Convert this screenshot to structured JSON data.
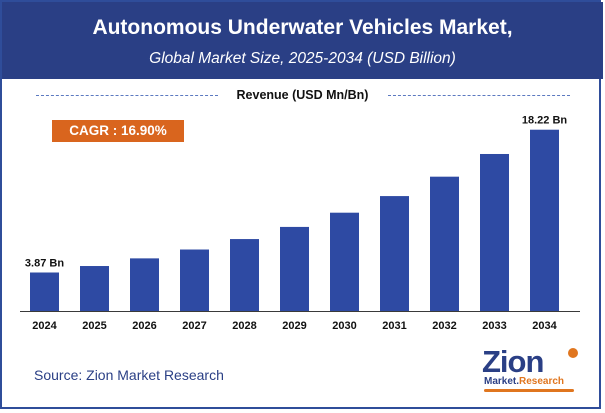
{
  "header": {
    "title": "Autonomous Underwater Vehicles Market,",
    "subtitle": "Global Market Size, 2025-2034 (USD Billion)"
  },
  "cagr_label": "CAGR : 16.90%",
  "source": "Source: Zion Market Research",
  "logo": {
    "main": "Zion",
    "sub_part1": "Market.",
    "sub_part2": "Research"
  },
  "colors": {
    "header_bg": "#2a3f85",
    "bar": "#2e4aa3",
    "cagr_bg": "#d9651e",
    "accent": "#e0761f"
  },
  "chart_data": {
    "type": "bar",
    "title": "Revenue (USD Mn/Bn)",
    "categories": [
      "2024",
      "2025",
      "2026",
      "2027",
      "2028",
      "2029",
      "2030",
      "2031",
      "2032",
      "2033",
      "2034"
    ],
    "values": [
      3.87,
      4.52,
      5.29,
      6.18,
      7.23,
      8.45,
      9.88,
      11.55,
      13.5,
      15.78,
      18.22
    ],
    "data_labels": [
      {
        "index": 0,
        "text": "3.87 Bn"
      },
      {
        "index": 10,
        "text": "18.22 Bn"
      }
    ],
    "xlabel": "",
    "ylabel": "",
    "ylim": [
      0,
      20
    ],
    "grid": false,
    "legend": "none"
  }
}
